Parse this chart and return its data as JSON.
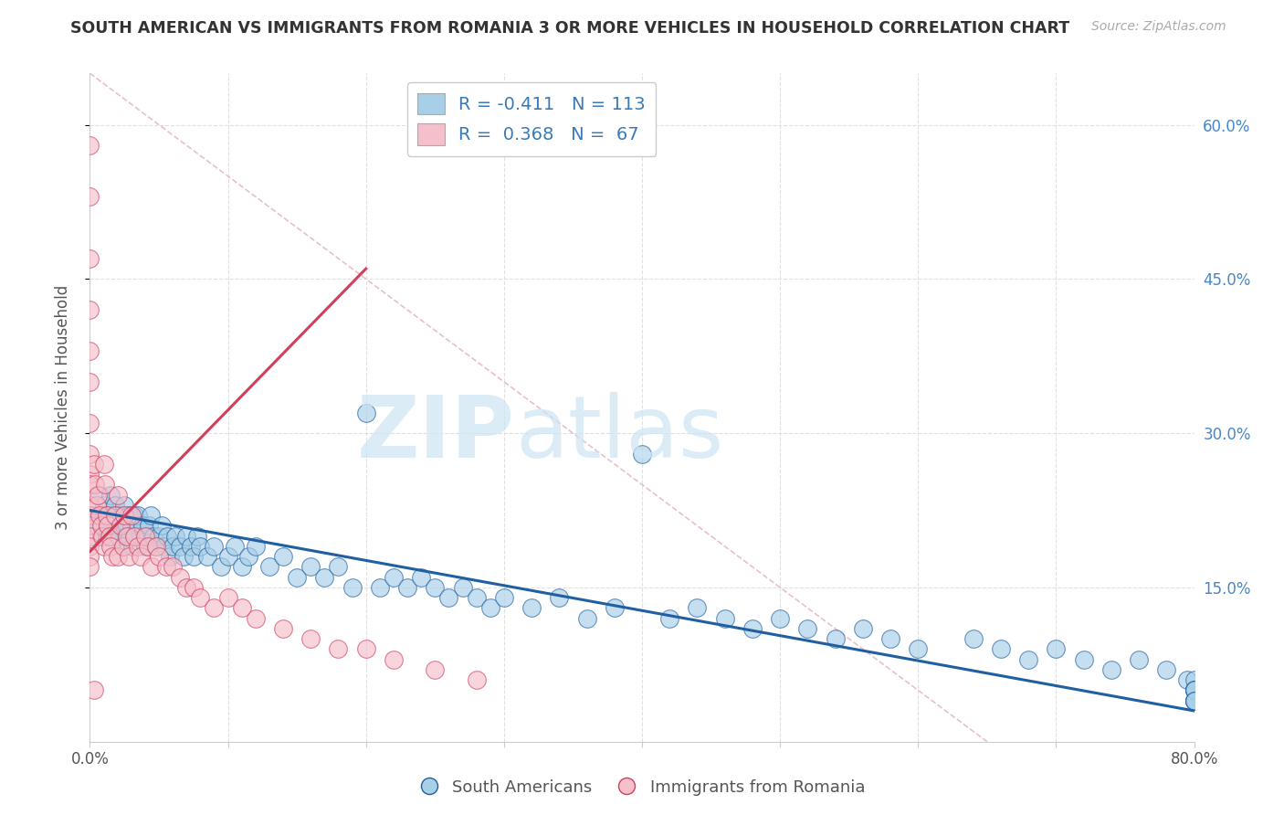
{
  "title": "SOUTH AMERICAN VS IMMIGRANTS FROM ROMANIA 3 OR MORE VEHICLES IN HOUSEHOLD CORRELATION CHART",
  "source": "Source: ZipAtlas.com",
  "ylabel": "3 or more Vehicles in Household",
  "xlim": [
    0.0,
    0.8
  ],
  "ylim": [
    0.0,
    0.65
  ],
  "color_blue": "#a8cfe8",
  "color_pink": "#f5bfcc",
  "color_blue_line": "#2060a0",
  "color_pink_line": "#d0405a",
  "background_color": "#ffffff",
  "grid_color": "#e0e0e0",
  "title_color": "#333333",
  "source_color": "#aaaaaa",
  "legend_label_1": "South Americans",
  "legend_label_2": "Immigrants from Romania",
  "legend_text_color": "#3a7ab8",
  "right_tick_color": "#4488cc",
  "blue_x": [
    0.003,
    0.005,
    0.007,
    0.008,
    0.01,
    0.011,
    0.012,
    0.013,
    0.014,
    0.015,
    0.016,
    0.017,
    0.018,
    0.019,
    0.02,
    0.021,
    0.022,
    0.023,
    0.024,
    0.025,
    0.026,
    0.027,
    0.028,
    0.029,
    0.03,
    0.031,
    0.032,
    0.033,
    0.034,
    0.035,
    0.037,
    0.038,
    0.04,
    0.042,
    0.043,
    0.044,
    0.046,
    0.048,
    0.05,
    0.052,
    0.054,
    0.056,
    0.058,
    0.06,
    0.062,
    0.065,
    0.068,
    0.07,
    0.073,
    0.075,
    0.078,
    0.08,
    0.085,
    0.09,
    0.095,
    0.1,
    0.105,
    0.11,
    0.115,
    0.12,
    0.13,
    0.14,
    0.15,
    0.16,
    0.17,
    0.18,
    0.19,
    0.2,
    0.21,
    0.22,
    0.23,
    0.24,
    0.25,
    0.26,
    0.27,
    0.28,
    0.29,
    0.3,
    0.32,
    0.34,
    0.36,
    0.38,
    0.4,
    0.42,
    0.44,
    0.46,
    0.48,
    0.5,
    0.52,
    0.54,
    0.56,
    0.58,
    0.6,
    0.64,
    0.66,
    0.68,
    0.7,
    0.72,
    0.74,
    0.76,
    0.78,
    0.795,
    0.8,
    0.8,
    0.8,
    0.8,
    0.8,
    0.8,
    0.8,
    0.8,
    0.8,
    0.8,
    0.8
  ],
  "blue_y": [
    0.22,
    0.21,
    0.24,
    0.2,
    0.23,
    0.22,
    0.2,
    0.21,
    0.22,
    0.24,
    0.2,
    0.22,
    0.23,
    0.21,
    0.22,
    0.2,
    0.21,
    0.22,
    0.19,
    0.23,
    0.2,
    0.21,
    0.22,
    0.2,
    0.21,
    0.19,
    0.22,
    0.2,
    0.21,
    0.22,
    0.2,
    0.21,
    0.19,
    0.2,
    0.21,
    0.22,
    0.2,
    0.19,
    0.2,
    0.21,
    0.19,
    0.2,
    0.18,
    0.19,
    0.2,
    0.19,
    0.18,
    0.2,
    0.19,
    0.18,
    0.2,
    0.19,
    0.18,
    0.19,
    0.17,
    0.18,
    0.19,
    0.17,
    0.18,
    0.19,
    0.17,
    0.18,
    0.16,
    0.17,
    0.16,
    0.17,
    0.15,
    0.32,
    0.15,
    0.16,
    0.15,
    0.16,
    0.15,
    0.14,
    0.15,
    0.14,
    0.13,
    0.14,
    0.13,
    0.14,
    0.12,
    0.13,
    0.28,
    0.12,
    0.13,
    0.12,
    0.11,
    0.12,
    0.11,
    0.1,
    0.11,
    0.1,
    0.09,
    0.1,
    0.09,
    0.08,
    0.09,
    0.08,
    0.07,
    0.08,
    0.07,
    0.06,
    0.05,
    0.05,
    0.06,
    0.04,
    0.05,
    0.04,
    0.05,
    0.04,
    0.05,
    0.04,
    0.04
  ],
  "pink_x": [
    0.0,
    0.0,
    0.0,
    0.0,
    0.0,
    0.0,
    0.0,
    0.0,
    0.0,
    0.0,
    0.0,
    0.0,
    0.0,
    0.0,
    0.0,
    0.0,
    0.0,
    0.003,
    0.003,
    0.004,
    0.005,
    0.006,
    0.007,
    0.008,
    0.009,
    0.01,
    0.01,
    0.011,
    0.012,
    0.013,
    0.014,
    0.015,
    0.016,
    0.018,
    0.02,
    0.02,
    0.022,
    0.024,
    0.025,
    0.027,
    0.028,
    0.03,
    0.032,
    0.035,
    0.037,
    0.04,
    0.042,
    0.045,
    0.048,
    0.05,
    0.055,
    0.06,
    0.065,
    0.07,
    0.075,
    0.08,
    0.09,
    0.1,
    0.11,
    0.12,
    0.14,
    0.16,
    0.18,
    0.2,
    0.22,
    0.25,
    0.28
  ],
  "pink_y": [
    0.58,
    0.53,
    0.47,
    0.42,
    0.38,
    0.35,
    0.31,
    0.28,
    0.26,
    0.25,
    0.23,
    0.22,
    0.21,
    0.2,
    0.19,
    0.18,
    0.17,
    0.27,
    0.05,
    0.25,
    0.23,
    0.24,
    0.22,
    0.21,
    0.2,
    0.27,
    0.19,
    0.25,
    0.22,
    0.21,
    0.2,
    0.19,
    0.18,
    0.22,
    0.24,
    0.18,
    0.21,
    0.19,
    0.22,
    0.2,
    0.18,
    0.22,
    0.2,
    0.19,
    0.18,
    0.2,
    0.19,
    0.17,
    0.19,
    0.18,
    0.17,
    0.17,
    0.16,
    0.15,
    0.15,
    0.14,
    0.13,
    0.14,
    0.13,
    0.12,
    0.11,
    0.1,
    0.09,
    0.09,
    0.08,
    0.07,
    0.06
  ],
  "blue_line_x": [
    0.0,
    0.8
  ],
  "blue_line_y": [
    0.225,
    0.03
  ],
  "pink_line_x": [
    0.0,
    0.2
  ],
  "pink_line_y": [
    0.185,
    0.46
  ],
  "diag_line_x": [
    0.0,
    0.65
  ],
  "diag_line_y": [
    0.65,
    0.0
  ],
  "watermark_zip": "ZIP",
  "watermark_atlas": "atlas"
}
